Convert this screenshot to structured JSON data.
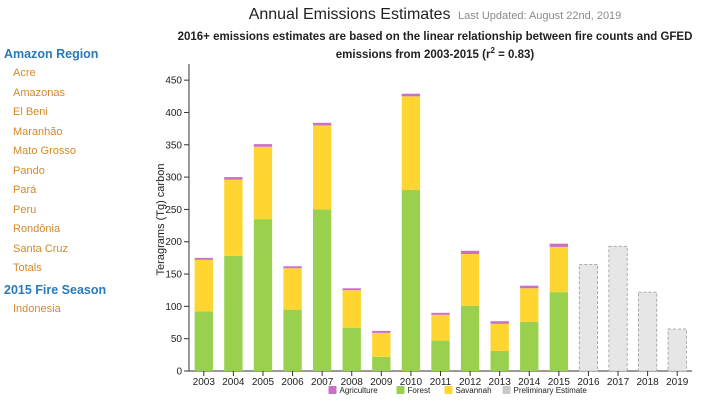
{
  "sidebar": {
    "region_heading": "Amazon Region",
    "regions": [
      "Acre",
      "Amazonas",
      "El Beni",
      "Maranhão",
      "Mato Grosso",
      "Pando",
      "Pará",
      "Peru",
      "Rondônia",
      "Santa Cruz",
      "Totals"
    ],
    "season_heading": "2015 Fire Season",
    "seasons": [
      "Indonesia"
    ]
  },
  "header": {
    "title": "Annual Emissions Estimates",
    "last_updated": "Last Updated: August 22nd, 2019",
    "subtitle_pre": "2016+ emissions estimates are based on the linear relationship between fire counts and GFED emissions from 2003-2015 (r",
    "subtitle_sup": "2",
    "subtitle_post": " = 0.83)"
  },
  "chart_data": {
    "type": "bar",
    "stacked": true,
    "ylabel": "Teragrams (Tg) carbon",
    "ylim": [
      0,
      475
    ],
    "yticks": [
      0,
      50,
      100,
      150,
      200,
      250,
      300,
      350,
      400,
      450
    ],
    "categories": [
      "2003",
      "2004",
      "2005",
      "2006",
      "2007",
      "2008",
      "2009",
      "2010",
      "2011",
      "2012",
      "2013",
      "2014",
      "2015",
      "2016",
      "2017",
      "2018",
      "2019"
    ],
    "series": [
      {
        "name": "Forest",
        "color": "#99d14e",
        "values": [
          92,
          178,
          235,
          95,
          250,
          67,
          22,
          280,
          47,
          101,
          31,
          76,
          122,
          null,
          null,
          null,
          null
        ]
      },
      {
        "name": "Savannah",
        "color": "#ffd631",
        "values": [
          80,
          118,
          112,
          64,
          130,
          58,
          37,
          145,
          40,
          80,
          42,
          52,
          70,
          null,
          null,
          null,
          null
        ]
      },
      {
        "name": "Agriculture",
        "color": "#c86fc8",
        "values": [
          3,
          4,
          4,
          3,
          4,
          3,
          3,
          4,
          3,
          5,
          4,
          4,
          5,
          null,
          null,
          null,
          null
        ]
      },
      {
        "name": "Preliminary Estimate",
        "color": "#e6e6e6",
        "values": [
          null,
          null,
          null,
          null,
          null,
          null,
          null,
          null,
          null,
          null,
          null,
          null,
          null,
          165,
          193,
          122,
          65
        ]
      }
    ],
    "legend_order": [
      "Agriculture",
      "Forest",
      "Savannah",
      "Preliminary Estimate"
    ],
    "legend_position": "bottom",
    "grid": false
  }
}
